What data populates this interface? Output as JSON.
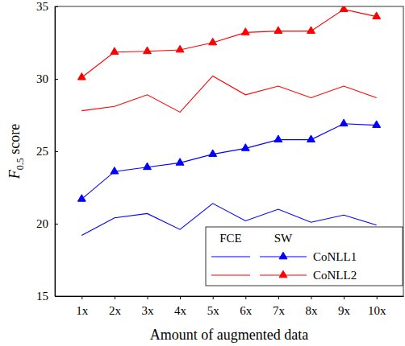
{
  "chart_data": {
    "type": "line",
    "x_label": "Amount of augmented data",
    "y_label": "F0.5 score",
    "categories": [
      "1x",
      "2x",
      "3x",
      "4x",
      "5x",
      "6x",
      "7x",
      "8x",
      "9x",
      "10x"
    ],
    "series": [
      {
        "name": "CoNLL1",
        "group": "FCE",
        "color": "#0000ff",
        "line_style": "solid",
        "values": [
          19.2,
          20.4,
          20.7,
          19.6,
          21.4,
          20.2,
          21.0,
          20.1,
          20.6,
          19.9
        ]
      },
      {
        "name": "CoNLL1",
        "group": "SW",
        "color": "#0000ff",
        "line_style": "solid",
        "marker": "triangle",
        "values": [
          21.7,
          23.6,
          23.9,
          24.2,
          24.8,
          25.2,
          25.8,
          25.8,
          26.9,
          26.8
        ]
      },
      {
        "name": "CoNLL2",
        "group": "FCE",
        "color": "#ff0000",
        "line_style": "solid",
        "values": [
          27.8,
          28.1,
          28.9,
          27.7,
          30.2,
          28.9,
          29.5,
          28.7,
          29.5,
          28.7
        ]
      },
      {
        "name": "CoNLL2",
        "group": "SW",
        "color": "#ff0000",
        "line_style": "solid",
        "marker": "triangle",
        "values": [
          30.1,
          31.85,
          31.9,
          32.0,
          32.5,
          33.2,
          33.3,
          33.3,
          34.8,
          34.3
        ]
      }
    ],
    "ylim": [
      15,
      35
    ],
    "yticks": [
      15,
      20,
      25,
      30,
      35
    ],
    "legend": "lower right"
  }
}
